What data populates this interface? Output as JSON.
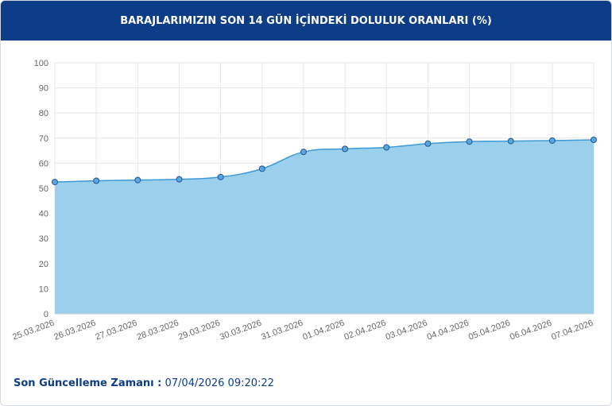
{
  "chart_data": {
    "type": "area",
    "title": "BARAJLARIMIZIN SON 14 GÜN İÇİNDEKİ DOLULUK ORANLARI (%)",
    "categories": [
      "25.03.2026",
      "26.03.2026",
      "27.03.2026",
      "28.03.2026",
      "29.03.2026",
      "30.03.2026",
      "31.03.2026",
      "01.04.2026",
      "02.04.2026",
      "03.04.2026",
      "04.04.2026",
      "05.04.2026",
      "06.04.2026",
      "07.04.2026"
    ],
    "values": [
      52.5,
      53,
      53.3,
      53.6,
      54.5,
      57.8,
      64.5,
      65.7,
      66.3,
      67.8,
      68.6,
      68.8,
      69.0,
      69.3
    ],
    "color": "#3d98d6",
    "fill": "#9bd0ec",
    "ylim": [
      0,
      100
    ],
    "yticks": [
      0,
      10,
      20,
      30,
      40,
      50,
      60,
      70,
      80,
      90,
      100
    ],
    "grid": true
  },
  "footer": {
    "label": "Son Güncelleme Zamanı :",
    "value": "07/04/2026 09:20:22"
  }
}
